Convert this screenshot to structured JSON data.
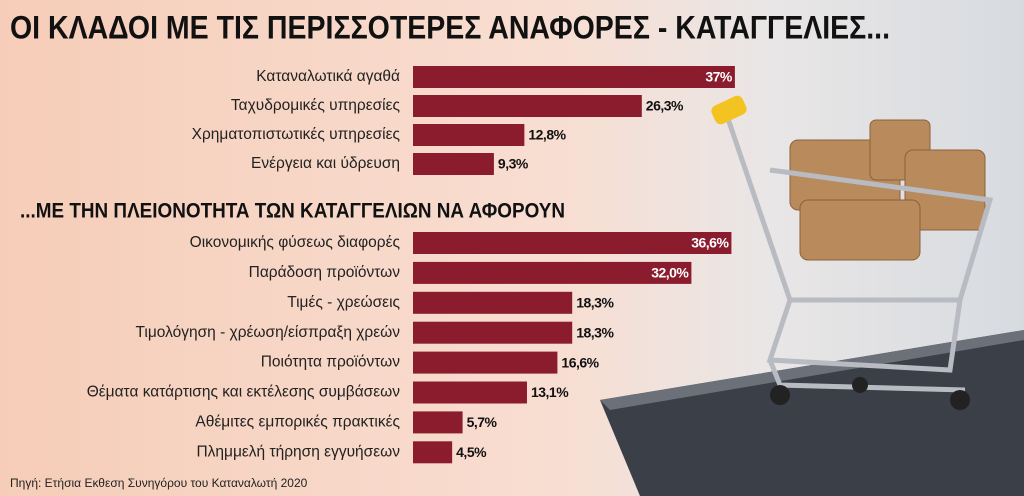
{
  "chart_data": [
    {
      "type": "bar",
      "orientation": "horizontal",
      "title": "ΟΙ ΚΛΑΔΟΙ ΜΕ ΤΙΣ ΠΕΡΙΣΣΟΤΕΡΕΣ ΑΝΑΦΟΡΕΣ - ΚΑΤΑΓΓΕΛΙΕΣ...",
      "categories": [
        "Καταναλωτικά αγαθά",
        "Ταχυδρομικές υπηρεσίες",
        "Χρηματοπιστωτικές υπηρεσίες",
        "Ενέργεια και ύδρευση"
      ],
      "values": [
        37,
        26.3,
        12.8,
        9.3
      ],
      "value_labels": [
        "37%",
        "26,3%",
        "12,8%",
        "9,3%"
      ],
      "color": "#8b1c2e"
    },
    {
      "type": "bar",
      "orientation": "horizontal",
      "title": "...ΜΕ ΤΗΝ ΠΛΕΙΟΝΟΤΗΤΑ ΤΩΝ ΚΑΤΑΓΓΕΛΙΩΝ ΝΑ ΑΦΟΡΟΥΝ",
      "categories": [
        "Οικονομικής φύσεως διαφορές",
        "Παράδοση προϊόντων",
        "Τιμές - χρεώσεις",
        "Τιμολόγηση - χρέωση/είσπραξη χρεών",
        "Ποιότητα προϊόντων",
        "Θέματα κατάρτισης και εκτέλεσης συμβάσεων",
        "Αθέμιτες εμπορικές πρακτικές",
        "Πλημμελή τήρηση εγγυήσεων"
      ],
      "values": [
        36.6,
        32.0,
        18.3,
        18.3,
        16.6,
        13.1,
        5.7,
        4.5
      ],
      "value_labels": [
        "36,6%",
        "32,0%",
        "18,3%",
        "18,3%",
        "16,6%",
        "13,1%",
        "5,7%",
        "4,5%"
      ],
      "color": "#8b1c2e"
    }
  ],
  "source": "Πηγή: Ετήσια Εκθεση Συνηγόρου του Καταναλωτή 2020"
}
